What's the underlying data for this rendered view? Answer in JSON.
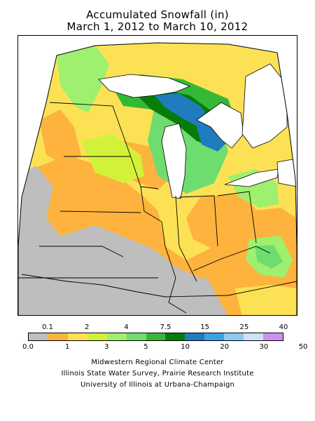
{
  "title": {
    "line1": "Accumulated Snowfall (in)",
    "line2": "March 1, 2012 to March 10, 2012"
  },
  "legend": {
    "top_labels": [
      "0.1",
      "2",
      "4",
      "7.5",
      "15",
      "25",
      "40"
    ],
    "bottom_labels": [
      "0.0",
      "1",
      "3",
      "5",
      "10",
      "20",
      "30",
      "50"
    ],
    "colors": [
      "#bebebe",
      "#fdb33d",
      "#fce155",
      "#d2f23a",
      "#9ef06e",
      "#6fdc6f",
      "#35b935",
      "#087c08",
      "#1f7cbf",
      "#39a3e0",
      "#8ccaf5",
      "#cfe3f8",
      "#cf91ef"
    ]
  },
  "credits": {
    "line1": "Midwestern Regional Climate Center",
    "line2": "Illinois State Water Survey, Prairie Research Institute",
    "line3": "University of Illinois at Urbana-Champaign"
  }
}
